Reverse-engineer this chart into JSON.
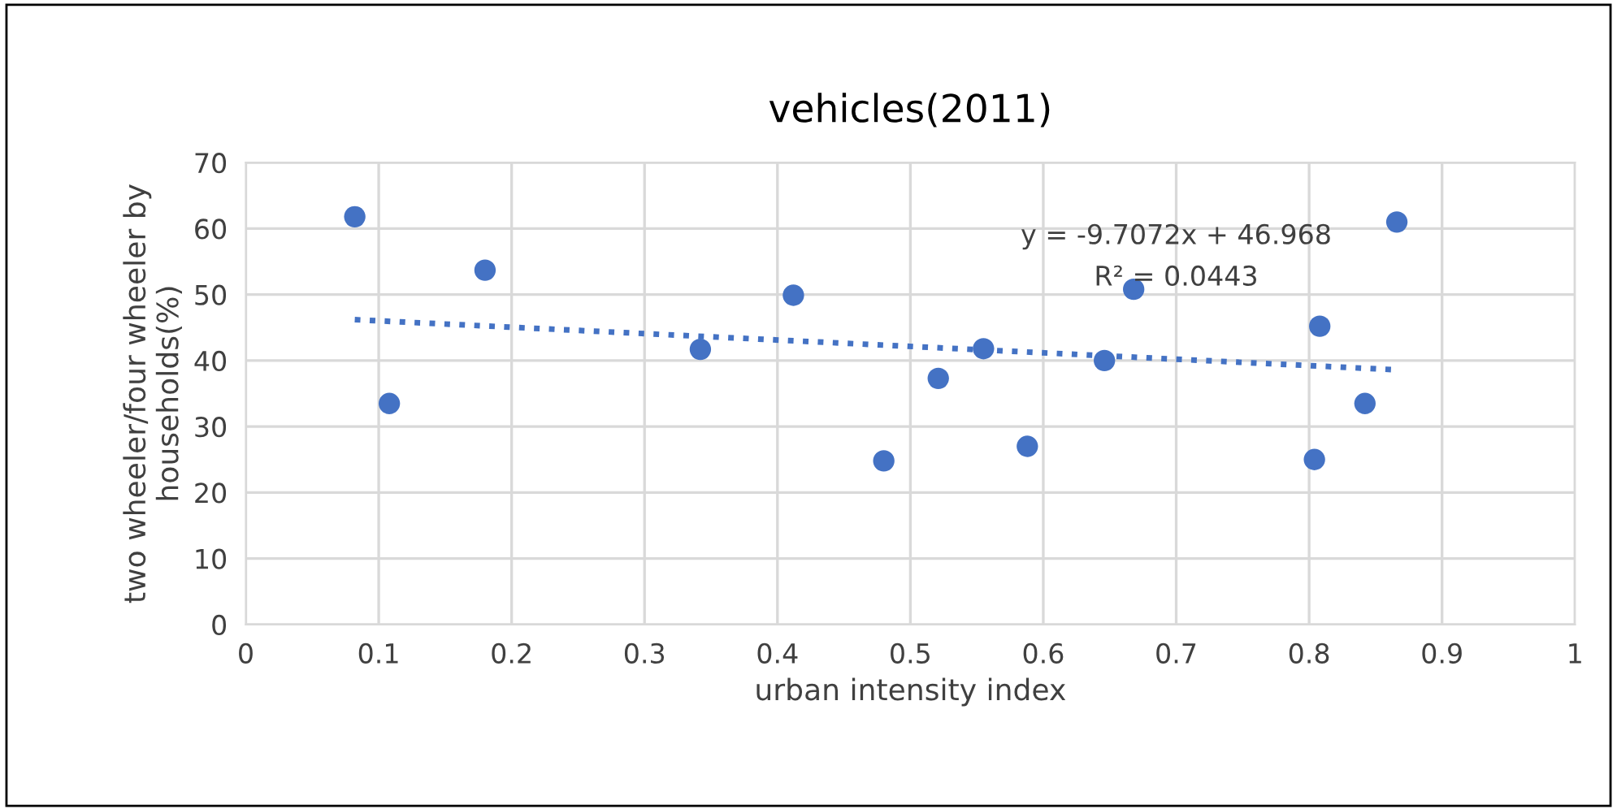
{
  "chart_data": {
    "type": "scatter",
    "title": "vehicles(2011)",
    "xlabel": "urban intensity index",
    "ylabel": "two wheeler/four wheeler by\nhouseholds(%)",
    "xlim": [
      0,
      1
    ],
    "xticks": [
      {
        "value": 0,
        "label": "0"
      },
      0.1,
      0.2,
      0.3,
      0.4,
      0.5,
      0.6,
      0.7,
      0.8,
      0.9,
      {
        "value": 1,
        "label": "1"
      }
    ],
    "ylim": [
      0,
      70
    ],
    "yticks": [
      0,
      10,
      20,
      30,
      40,
      50,
      60,
      70
    ],
    "grid": true,
    "marker": "circle",
    "annotations": [
      "y = -9.7072x + 46.968",
      "R² = 0.0443"
    ],
    "series": [
      {
        "color": "#4472c4",
        "x": [
          0.082,
          0.108,
          0.18,
          0.342,
          0.412,
          0.48,
          0.521,
          0.555,
          0.588,
          0.646,
          0.668,
          0.804,
          0.808,
          0.842,
          0.866
        ],
        "values": [
          61.8,
          33.5,
          53.7,
          41.7,
          49.9,
          24.8,
          37.3,
          41.8,
          27,
          40,
          50.8,
          25,
          45.2,
          33.5,
          61
        ]
      },
      {
        "type": "line",
        "color": "#4472c4",
        "line_style": "dotted",
        "marker": "none",
        "x": [
          0.082,
          0.866
        ],
        "values": [
          46.2,
          38.6
        ]
      }
    ]
  }
}
